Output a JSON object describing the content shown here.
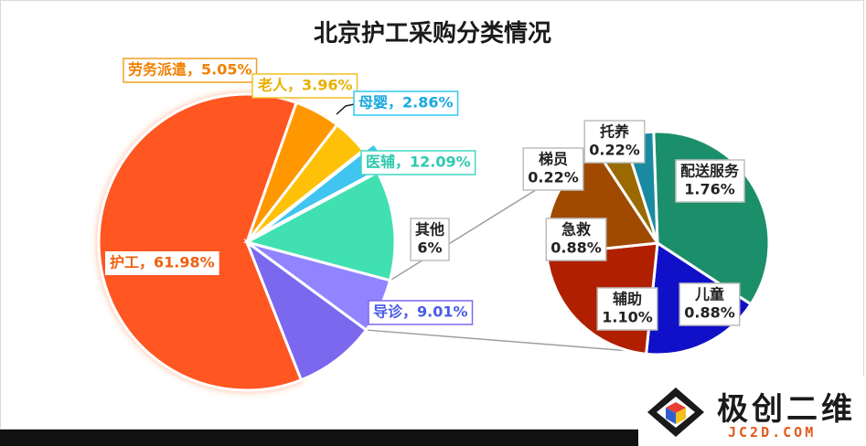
{
  "chart_data": [
    {
      "type": "pie",
      "title": "北京护工采购分类情况",
      "slices": [
        {
          "name": "护工",
          "value": 61.98,
          "label": "护工，61.98%",
          "color": "#ff5722",
          "text_color": "#f06010"
        },
        {
          "name": "劳务派遣",
          "value": 5.05,
          "label": "劳务派遣，5.05%",
          "color": "#ff9800",
          "text_color": "#f08000"
        },
        {
          "name": "老人",
          "value": 3.96,
          "label": "老人，3.96%",
          "color": "#ffc107",
          "text_color": "#e8b000"
        },
        {
          "name": "母婴",
          "value": 2.86,
          "label": "母婴，2.86%",
          "color": "#40c4f0",
          "text_color": "#19a9e0"
        },
        {
          "name": "医辅",
          "value": 12.09,
          "label": "医辅，12.09%",
          "color": "#40e0b0",
          "text_color": "#2ec8b0"
        },
        {
          "name": "其他",
          "value": 6,
          "label_lines": [
            "其他",
            "6%"
          ],
          "color": "#9084ff",
          "text_color": "#222222"
        },
        {
          "name": "导诊",
          "value": 9.01,
          "label": "导诊，9.01%",
          "color": "#7b68ee",
          "text_color": "#4a5ae8"
        }
      ]
    },
    {
      "type": "pie",
      "title": "",
      "slices": [
        {
          "name": "配送服务",
          "value": 1.76,
          "label_lines": [
            "配送服务",
            "1.76%"
          ],
          "color": "#1b8f6a"
        },
        {
          "name": "儿童",
          "value": 0.88,
          "label_lines": [
            "儿童",
            "0.88%"
          ],
          "color": "#1010c8"
        },
        {
          "name": "辅助",
          "value": 1.1,
          "label_lines": [
            "辅助",
            "1.10%"
          ],
          "color": "#b02000"
        },
        {
          "name": "急救",
          "value": 0.88,
          "label_lines": [
            "急救",
            "0.88%"
          ],
          "color": "#a04a00"
        },
        {
          "name": "梯员",
          "value": 0.22,
          "label_lines": [
            "梯员",
            "0.22%"
          ],
          "color": "#9a6a00"
        },
        {
          "name": "托养",
          "value": 0.22,
          "label_lines": [
            "托养",
            "0.22%"
          ],
          "color": "#1a8aa0"
        }
      ]
    }
  ],
  "watermark": {
    "name": "极创二维",
    "url": "JC2D.COM"
  }
}
